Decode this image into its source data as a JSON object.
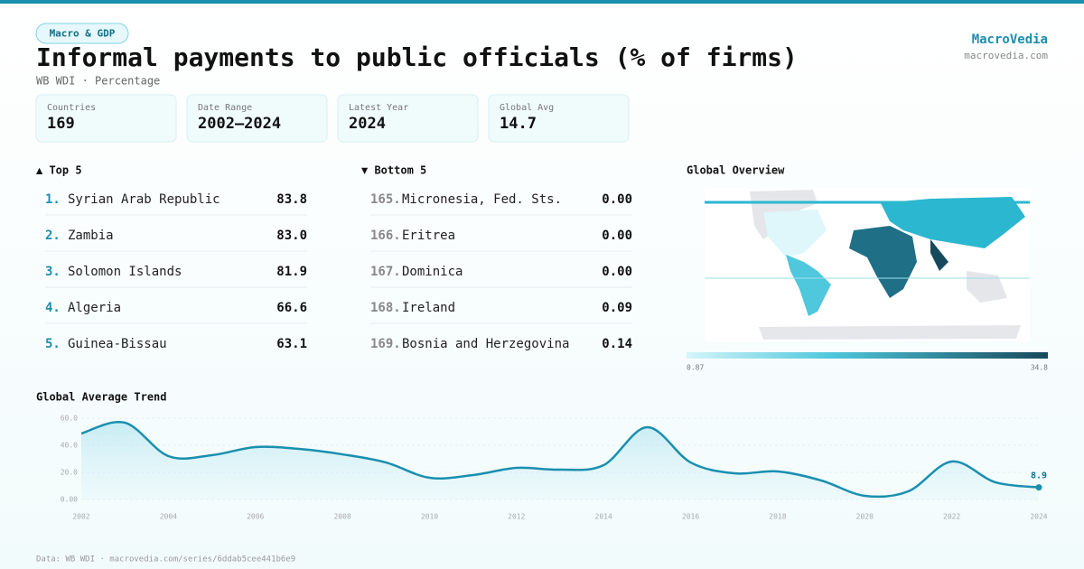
{
  "header": {
    "tag": "Macro & GDP",
    "title": "Informal payments to public officials (% of firms)",
    "subtitle": "WB WDI · Percentage",
    "brand": "MacroVedia",
    "site": "macrovedia.com"
  },
  "stats": [
    {
      "label": "Countries",
      "value": 169
    },
    {
      "label": "Date Range",
      "value": "2002–2024"
    },
    {
      "label": "Latest Year",
      "value": 2024
    },
    {
      "label": "Global Avg",
      "value": 14.7
    }
  ],
  "top": {
    "title": "▲ Top 5",
    "rows": [
      {
        "rank": "1.",
        "name": "Syrian Arab Republic",
        "value": "83.8"
      },
      {
        "rank": "2.",
        "name": "Zambia",
        "value": "83.0"
      },
      {
        "rank": "3.",
        "name": "Solomon Islands",
        "value": "81.9"
      },
      {
        "rank": "4.",
        "name": "Algeria",
        "value": "66.6"
      },
      {
        "rank": "5.",
        "name": "Guinea-Bissau",
        "value": "63.1"
      }
    ]
  },
  "bottom": {
    "title": "▼ Bottom 5",
    "rows": [
      {
        "rank": "165.",
        "name": "Micronesia, Fed. Sts.",
        "value": "0.00"
      },
      {
        "rank": "166.",
        "name": "Eritrea",
        "value": "0.00"
      },
      {
        "rank": "167.",
        "name": "Dominica",
        "value": "0.00"
      },
      {
        "rank": "168.",
        "name": "Ireland",
        "value": "0.09"
      },
      {
        "rank": "169.",
        "name": "Bosnia and Herzegovina",
        "value": "0.14"
      }
    ]
  },
  "map": {
    "title": "Global Overview",
    "scale_min": 0.87,
    "scale_max": 34.8
  },
  "chart_data": {
    "type": "line",
    "title": "Global Average Trend",
    "color": "#1a8fb0",
    "x": [
      2002,
      2003,
      2004,
      2005,
      2006,
      2007,
      2008,
      2009,
      2010,
      2011,
      2012,
      2013,
      2014,
      2015,
      2016,
      2017,
      2018,
      2019,
      2020,
      2021,
      2022,
      2023,
      2024
    ],
    "values": [
      48.7,
      56.7,
      32,
      32.7,
      38.7,
      37.3,
      33.3,
      27.3,
      16,
      18,
      23.3,
      22,
      25.3,
      53.3,
      27.3,
      19.3,
      20.7,
      14,
      2.7,
      6,
      28,
      12.7,
      8.9
    ],
    "xlim": [
      2002,
      2024
    ],
    "xticks": [
      2002,
      2004,
      2006,
      2008,
      2010,
      2012,
      2014,
      2016,
      2018,
      2020,
      2022,
      2024
    ],
    "ylim": [
      0,
      60
    ],
    "yticks": [
      {
        "value": 0,
        "label": "0.00"
      },
      {
        "value": 20,
        "label": "20.0"
      },
      {
        "value": 40,
        "label": "40.0"
      },
      {
        "value": 60,
        "label": "60.0"
      }
    ],
    "grid": true
  },
  "footer": "Data: WB WDI · macrovedia.com/series/6ddab5cee441b6e9"
}
